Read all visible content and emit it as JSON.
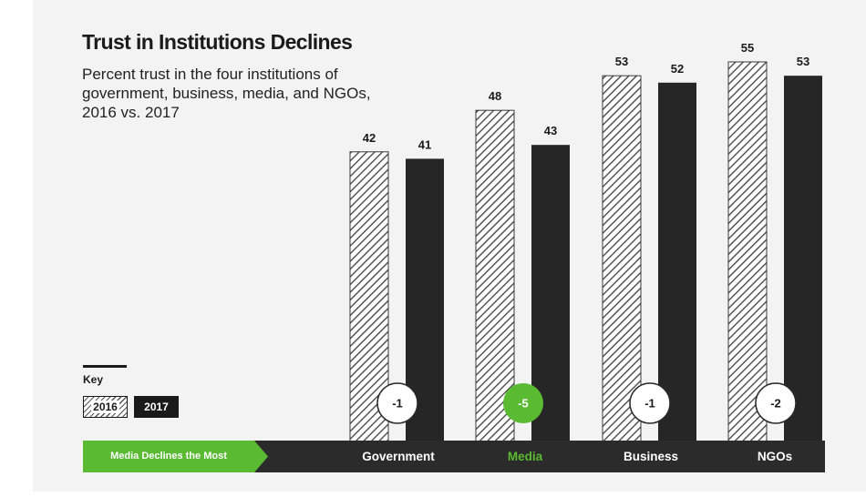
{
  "title": "Trust in Institutions Declines",
  "subtitle": "Percent trust in the four institutions of government, business, media, and NGOs, 2016 vs. 2017",
  "key": {
    "label": "Key",
    "entries": [
      "2016",
      "2017"
    ]
  },
  "banner": "Media Declines the Most",
  "colors": {
    "accent": "#5aba32",
    "dark": "#1a1a1a",
    "background": "#f3f3f3"
  },
  "chart_data": {
    "type": "bar",
    "categories": [
      "Government",
      "Media",
      "Business",
      "NGOs"
    ],
    "highlight_category": "Media",
    "series": [
      {
        "name": "2016",
        "values": [
          42,
          48,
          53,
          55
        ],
        "style": "hatched"
      },
      {
        "name": "2017",
        "values": [
          41,
          43,
          52,
          53
        ],
        "style": "solid-black"
      }
    ],
    "changes": [
      "-1",
      "-5",
      "-1",
      "-2"
    ],
    "ylim": [
      0,
      55
    ],
    "grid": false,
    "legend": "bottom-left"
  }
}
